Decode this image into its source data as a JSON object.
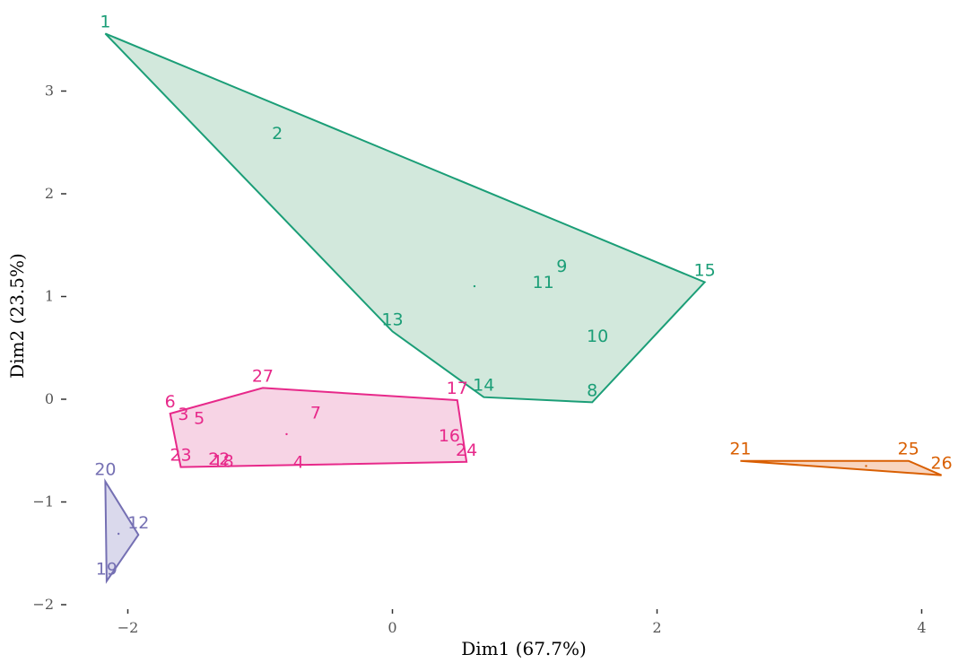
{
  "chart_data": {
    "type": "scatter",
    "title": "",
    "xlabel": "Dim1 (67.7%)",
    "ylabel": "Dim2 (23.5%)",
    "xlim": [
      -2.2,
      4.2
    ],
    "ylim": [
      -2.0,
      3.65
    ],
    "x_ticks": [
      -2,
      0,
      2,
      4
    ],
    "x_tick_labels": [
      "−2",
      "0",
      "2",
      "4"
    ],
    "y_ticks": [
      -2,
      -1,
      0,
      1,
      2,
      3
    ],
    "y_tick_labels": [
      "−2",
      "−1",
      "0",
      "1",
      "2",
      "3"
    ],
    "grid": false,
    "legend": "none",
    "clusters": [
      {
        "color": "#1b9e77",
        "fill": "#d2e8dc",
        "centroid": [
          0.62,
          1.1
        ],
        "hull": [
          "1",
          "15",
          "8",
          "14",
          "13"
        ],
        "points": [
          {
            "label": "1",
            "x": -2.17,
            "y": 3.56
          },
          {
            "label": "2",
            "x": -0.87,
            "y": 2.47
          },
          {
            "label": "9",
            "x": 1.28,
            "y": 1.18
          },
          {
            "label": "11",
            "x": 1.14,
            "y": 1.02
          },
          {
            "label": "15",
            "x": 2.36,
            "y": 1.14
          },
          {
            "label": "13",
            "x": 0.0,
            "y": 0.66
          },
          {
            "label": "10",
            "x": 1.55,
            "y": 0.5
          },
          {
            "label": "14",
            "x": 0.69,
            "y": 0.02
          },
          {
            "label": "8",
            "x": 1.51,
            "y": -0.03
          }
        ]
      },
      {
        "color": "#e7298a",
        "fill": "#f7d4e5",
        "centroid": [
          -0.8,
          -0.34
        ],
        "hull": [
          "27",
          "17",
          "24",
          "23",
          "6"
        ],
        "points": [
          {
            "label": "27",
            "x": -0.98,
            "y": 0.11
          },
          {
            "label": "17",
            "x": 0.49,
            "y": -0.01
          },
          {
            "label": "6",
            "x": -1.68,
            "y": -0.14
          },
          {
            "label": "3",
            "x": -1.58,
            "y": -0.26
          },
          {
            "label": "5",
            "x": -1.46,
            "y": -0.3
          },
          {
            "label": "7",
            "x": -0.58,
            "y": -0.25
          },
          {
            "label": "16",
            "x": 0.43,
            "y": -0.47
          },
          {
            "label": "22",
            "x": -1.31,
            "y": -0.63
          },
          {
            "label": "18",
            "x": -1.28,
            "y": -0.72
          },
          {
            "label": "4",
            "x": -0.71,
            "y": -0.73
          },
          {
            "label": "23",
            "x": -1.6,
            "y": -0.66
          },
          {
            "label": "24",
            "x": 0.56,
            "y": -0.61
          }
        ]
      },
      {
        "color": "#7570b3",
        "fill": "#dad9ec",
        "centroid": [
          -2.07,
          -1.31
        ],
        "hull": [
          "20",
          "12",
          "19"
        ],
        "points": [
          {
            "label": "20",
            "x": -2.17,
            "y": -0.8
          },
          {
            "label": "12",
            "x": -1.92,
            "y": -1.32
          },
          {
            "label": "19",
            "x": -2.16,
            "y": -1.77
          }
        ]
      },
      {
        "color": "#d95f02",
        "fill": "#f8d5c0",
        "centroid": [
          3.58,
          -0.65
        ],
        "hull": [
          "21",
          "25",
          "26"
        ],
        "points": [
          {
            "label": "21",
            "x": 2.63,
            "y": -0.6
          },
          {
            "label": "25",
            "x": 3.9,
            "y": -0.6
          },
          {
            "label": "26",
            "x": 4.15,
            "y": -0.74
          }
        ]
      }
    ]
  }
}
